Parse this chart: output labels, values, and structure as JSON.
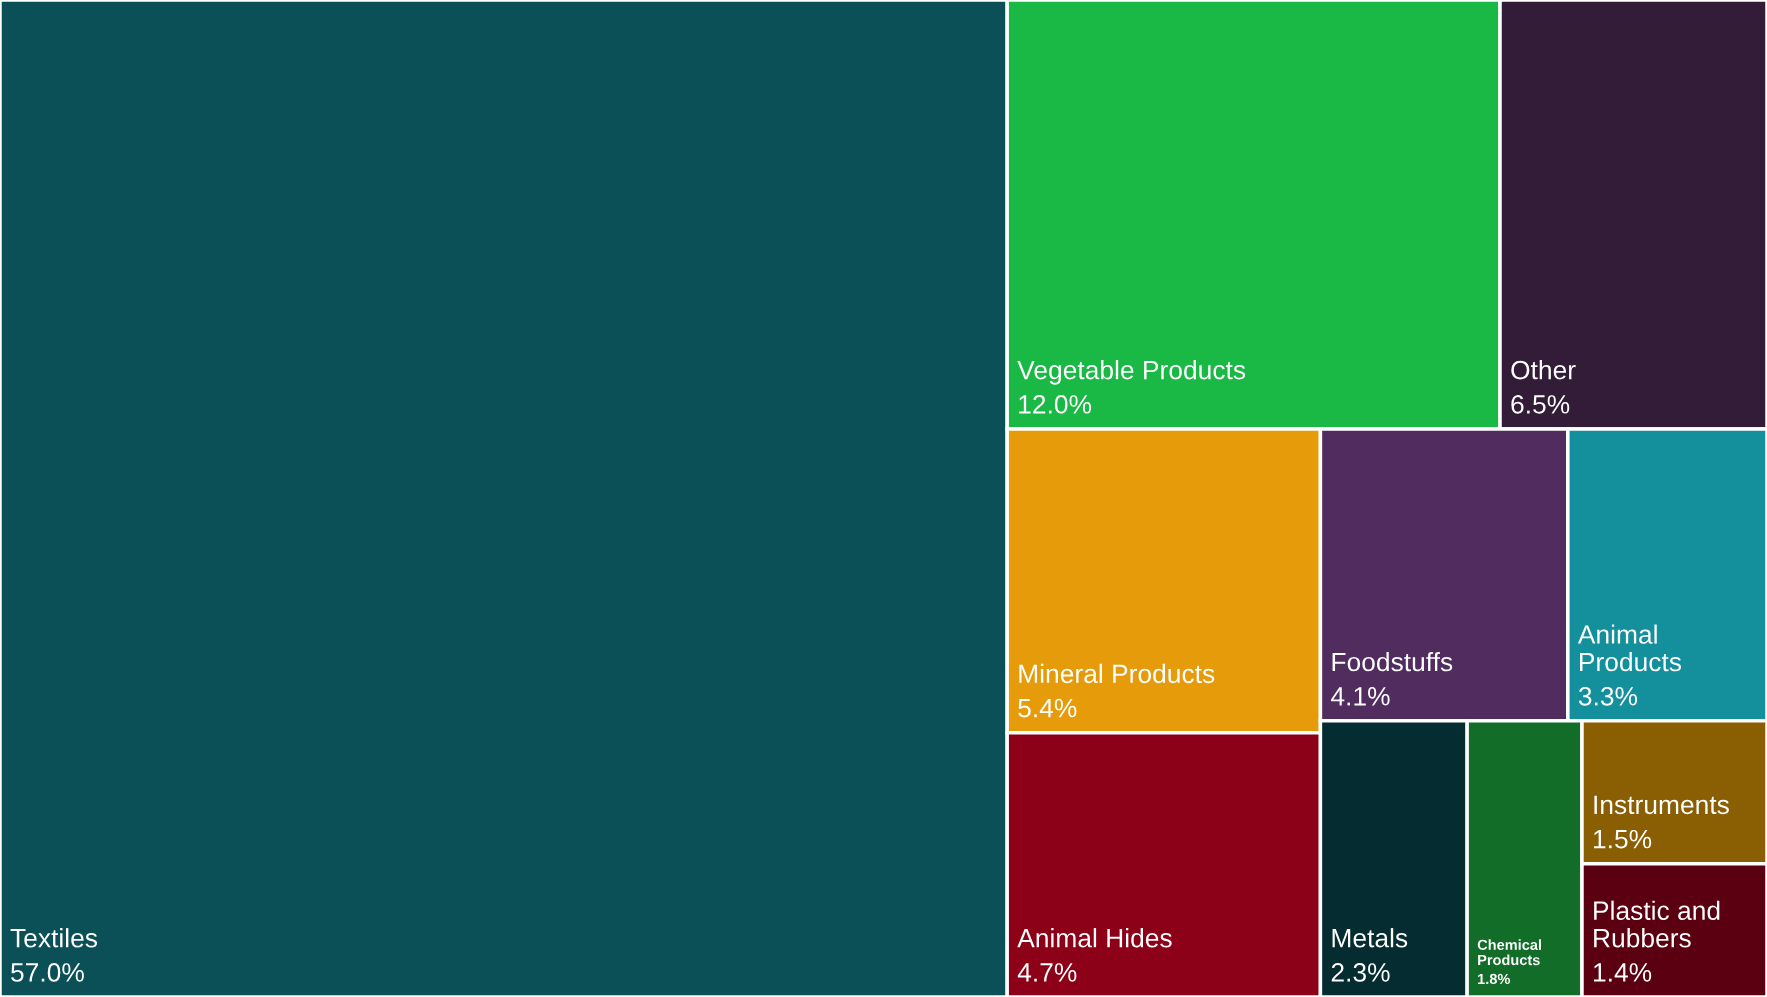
{
  "chart_data": {
    "type": "other",
    "categories": [
      "Textiles",
      "Vegetable Products",
      "Other",
      "Mineral Products",
      "Animal Hides",
      "Foodstuffs",
      "Animal Products",
      "Metals",
      "Chemical Products",
      "Instruments",
      "Plastic and Rubbers"
    ],
    "values": [
      57.0,
      12.0,
      6.5,
      5.4,
      4.7,
      4.1,
      3.3,
      2.3,
      1.8,
      1.5,
      1.4
    ],
    "value_labels": [
      "57.0%",
      "12.0%",
      "6.5%",
      "5.4%",
      "4.7%",
      "4.1%",
      "3.3%",
      "2.3%",
      "1.8%",
      "1.5%",
      "1.4%"
    ],
    "colors": [
      "#0b5057",
      "#1ab845",
      "#321c38",
      "#e69c0a",
      "#8c0018",
      "#512c5f",
      "#14909d",
      "#052c31",
      "#116d27",
      "#8a5e03",
      "#5b0010"
    ]
  }
}
